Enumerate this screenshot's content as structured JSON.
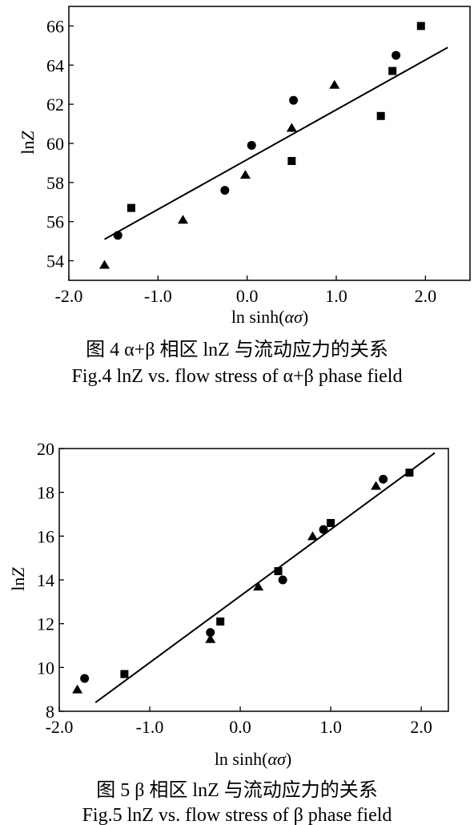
{
  "figures": [
    {
      "caption_cn": "图 4  α+β 相区 lnZ 与流动应力的关系",
      "caption_en": "Fig.4  lnZ vs. flow stress of α+β phase field"
    },
    {
      "caption_cn": "图 5  β 相区 lnZ 与流动应力的关系",
      "caption_en": "Fig.5  lnZ vs. flow stress of β phase field"
    }
  ],
  "chart_data": [
    {
      "type": "scatter",
      "xlabel": "ln sinh(ασ)",
      "ylabel": "lnZ",
      "xlim": [
        -2.0,
        2.5
      ],
      "ylim": [
        53,
        67
      ],
      "xticks": [
        "-2.0",
        "-1.0",
        "0.0",
        "1.0",
        "2.0"
      ],
      "yticks": [
        "54",
        "56",
        "58",
        "60",
        "62",
        "64",
        "66"
      ],
      "xtick_values": [
        -2.0,
        -1.0,
        0.0,
        1.0,
        2.0
      ],
      "ytick_values": [
        54,
        56,
        58,
        60,
        62,
        64,
        66
      ],
      "series": [
        {
          "marker": "square",
          "points": [
            [
              -1.3,
              56.7
            ],
            [
              0.5,
              59.1
            ],
            [
              1.5,
              61.4
            ],
            [
              1.63,
              63.7
            ],
            [
              1.95,
              66.0
            ]
          ]
        },
        {
          "marker": "circle",
          "points": [
            [
              -1.45,
              55.3
            ],
            [
              -0.25,
              57.6
            ],
            [
              0.05,
              59.9
            ],
            [
              0.52,
              62.2
            ],
            [
              1.67,
              64.5
            ]
          ]
        },
        {
          "marker": "triangle",
          "points": [
            [
              -1.6,
              53.8
            ],
            [
              -0.72,
              56.1
            ],
            [
              -0.02,
              58.4
            ],
            [
              0.5,
              60.8
            ],
            [
              0.98,
              63.0
            ]
          ]
        }
      ],
      "fit_line": [
        [
          -1.6,
          55.1
        ],
        [
          2.25,
          64.9
        ]
      ],
      "grid": false
    },
    {
      "type": "scatter",
      "xlabel": "ln sinh(ασ)",
      "ylabel": "lnZ",
      "xlim": [
        -2.0,
        2.3
      ],
      "ylim": [
        8,
        20
      ],
      "xticks": [
        "-2.0",
        "-1.0",
        "0.0",
        "1.0",
        "2.0"
      ],
      "yticks": [
        "8",
        "10",
        "12",
        "14",
        "16",
        "18",
        "20"
      ],
      "xtick_values": [
        -2.0,
        -1.0,
        0.0,
        1.0,
        2.0
      ],
      "ytick_values": [
        8,
        10,
        12,
        14,
        16,
        18,
        20
      ],
      "series": [
        {
          "marker": "square",
          "points": [
            [
              -1.28,
              9.7
            ],
            [
              -0.22,
              12.1
            ],
            [
              0.42,
              14.4
            ],
            [
              1.0,
              16.6
            ],
            [
              1.87,
              18.9
            ]
          ]
        },
        {
          "marker": "circle",
          "points": [
            [
              -1.72,
              9.5
            ],
            [
              -0.33,
              11.6
            ],
            [
              0.47,
              14.0
            ],
            [
              0.92,
              16.3
            ],
            [
              1.58,
              18.6
            ]
          ]
        },
        {
          "marker": "triangle",
          "points": [
            [
              -1.8,
              9.0
            ],
            [
              -0.33,
              11.3
            ],
            [
              0.2,
              13.7
            ],
            [
              0.8,
              16.0
            ],
            [
              1.5,
              18.3
            ]
          ]
        }
      ],
      "fit_line": [
        [
          -1.6,
          8.4
        ],
        [
          2.15,
          19.8
        ]
      ],
      "grid": false
    }
  ]
}
